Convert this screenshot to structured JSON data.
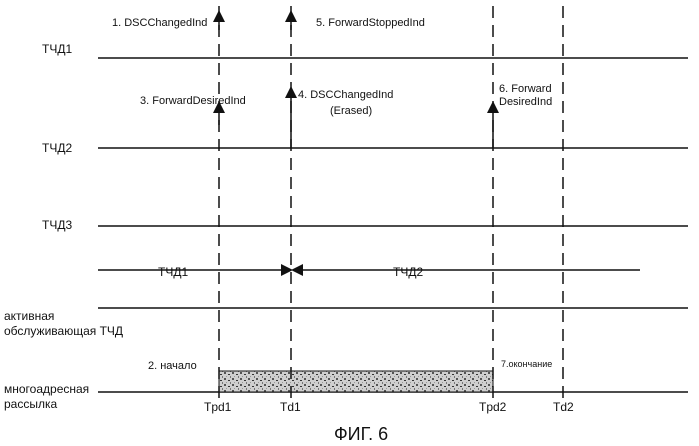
{
  "rows": {
    "tchd1": "ТЧД1",
    "tchd2": "ТЧД2",
    "tchd3": "ТЧД3",
    "active_line1": "активная",
    "active_line2": "обслуживающая ТЧД",
    "multicast_line1": "многоадресная",
    "multicast_line2": "рассылка"
  },
  "events": {
    "e1": "1. DSCChangedInd",
    "e2": "2. начало",
    "e3": "3. ForwardDesiredInd",
    "e4_line1": "4. DSCChangedInd",
    "e4_line2": "(Erased)",
    "e5": "5. ForwardStoppedInd",
    "e6_line1": "6. Forward",
    "e6_line2": "DesiredInd",
    "e7": "7.окончание"
  },
  "segments": {
    "left": "ТЧД1",
    "right": "ТЧД2"
  },
  "times": {
    "tpd1": "Tpd1",
    "td1": "Td1",
    "tpd2": "Tpd2",
    "td2": "Td2"
  },
  "caption": "ФИГ. 6"
}
